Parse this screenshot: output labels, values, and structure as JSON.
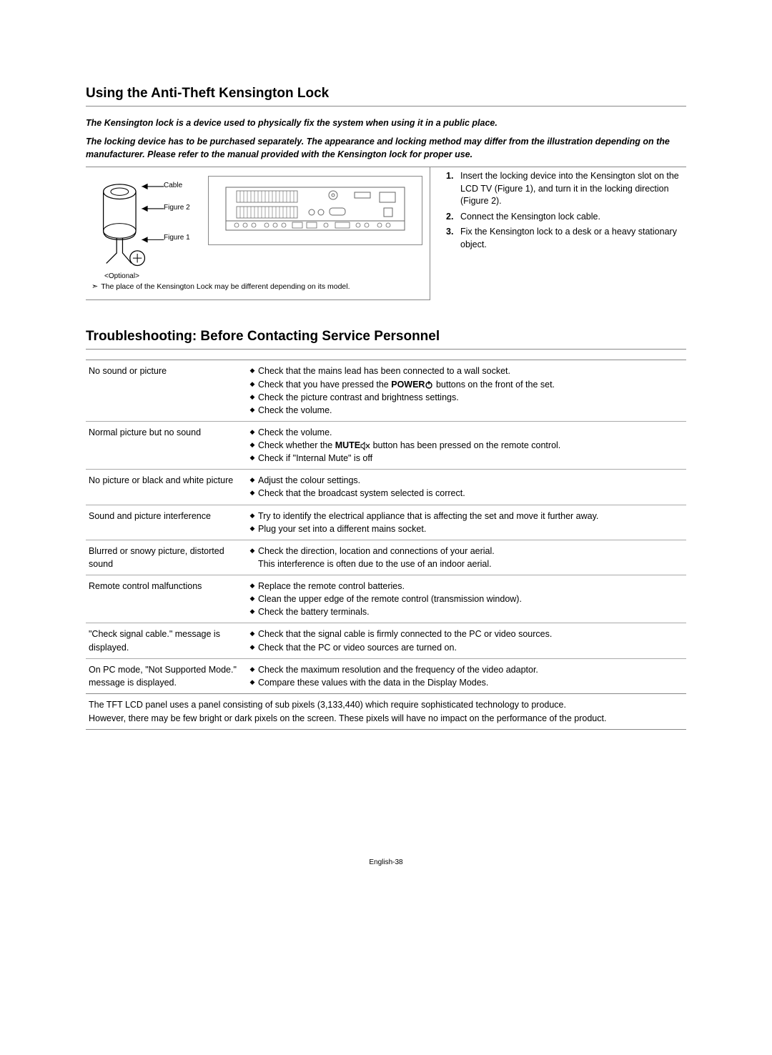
{
  "section1": {
    "title": "Using the Anti-Theft Kensington Lock",
    "intro_lines": [
      "The Kensington lock is a device used to physically fix the system when using it in a public place.",
      "The locking device has to be purchased separately. The appearance and locking method may differ from the illustration depending on the manufacturer. Please refer to the manual provided with the Kensington lock for proper use."
    ],
    "figure": {
      "cable_label": "Cable",
      "fig2_label": "Figure 2",
      "fig1_label": "Figure 1",
      "optional": "<Optional>",
      "note": "The place of the  Kensington Lock may be different depending on its model."
    },
    "steps": [
      {
        "num": "1.",
        "text": "Insert the locking device into the Kensington slot on the LCD TV (Figure 1), and turn it in the locking direction (Figure 2)."
      },
      {
        "num": "2.",
        "text": "Connect the Kensington lock cable."
      },
      {
        "num": "3.",
        "text": "Fix the Kensington lock to a desk or a heavy stationary object."
      }
    ]
  },
  "section2": {
    "title": "Troubleshooting: Before Contacting Service Personnel",
    "rows": [
      {
        "label": "No sound or picture",
        "items": [
          {
            "t": "Check that the mains lead has been connected to a wall socket."
          },
          {
            "t": "Check that you have pressed the ",
            "b": "POWER",
            "icon": "power",
            "t2": " buttons on the front of the set."
          },
          {
            "t": "Check the picture contrast and brightness settings."
          },
          {
            "t": "Check the volume."
          }
        ]
      },
      {
        "label": "Normal picture but no sound",
        "items": [
          {
            "t": "Check the volume."
          },
          {
            "t": "Check whether the ",
            "b": "MUTE",
            "icon": "mute",
            "t2": " button has been pressed on the remote control."
          },
          {
            "t": "Check if \"Internal Mute\" is off"
          }
        ]
      },
      {
        "label": "No picture or black and white picture",
        "items": [
          {
            "t": "Adjust the colour settings."
          },
          {
            "t": "Check that the broadcast system selected is correct."
          }
        ]
      },
      {
        "label": "Sound and picture interference",
        "items": [
          {
            "t": "Try to identify the electrical appliance that is affecting the set and move it further away."
          },
          {
            "t": "Plug your set into a different mains socket."
          }
        ]
      },
      {
        "label": "Blurred or snowy picture, distorted sound",
        "items": [
          {
            "t": "Check the direction, location and connections of your aerial."
          },
          {
            "t": "This interference is often due to the use of an indoor aerial.",
            "noDot": true
          }
        ]
      },
      {
        "label": "Remote control malfunctions",
        "items": [
          {
            "t": "Replace the remote control batteries."
          },
          {
            "t": "Clean the upper edge of the remote control (transmission window)."
          },
          {
            "t": "Check the battery terminals."
          }
        ]
      },
      {
        "label": "\"Check signal cable.\" message is displayed.",
        "items": [
          {
            "t": "Check that the signal cable is firmly connected to the PC or video sources."
          },
          {
            "t": "Check that the PC or video sources are turned on."
          }
        ]
      },
      {
        "label": "On PC mode, \"Not Supported Mode.\" message is displayed.",
        "items": [
          {
            "t": "Check the maximum resolution and the frequency of the video adaptor."
          },
          {
            "t": "Compare these values with the data in the Display Modes."
          }
        ]
      }
    ],
    "footnote": [
      "The TFT LCD panel uses a panel consisting of sub pixels (3,133,440) which require sophisticated technology to produce.",
      "However, there may be few bright or dark pixels on the screen. These pixels will have no impact on the performance of the product."
    ]
  },
  "page_num": "English-38"
}
